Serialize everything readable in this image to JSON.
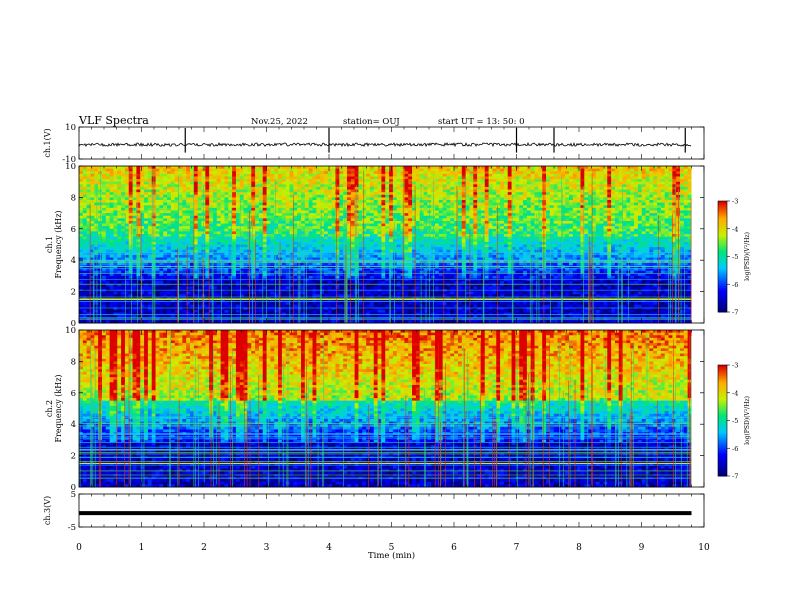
{
  "header": {
    "title": "VLF Spectra",
    "date": "Nov.25, 2022",
    "station": "station= OUJ",
    "start": "start  UT =   13: 50: 0"
  },
  "chart_data": {
    "type": "heatmap",
    "title": "VLF Spectra",
    "x": {
      "label": "Time  (min)",
      "range": [
        0,
        10
      ],
      "ticks": [
        "0",
        "1",
        "2",
        "3",
        "4",
        "5",
        "6",
        "7",
        "8",
        "9",
        "10"
      ]
    },
    "panels": [
      {
        "kind": "waveform",
        "ylabel": "ch.1(V)",
        "ylim": [
          -10,
          10
        ],
        "yticks": [
          "10",
          "-10"
        ],
        "baseline": -1,
        "spike_times": [
          1.7,
          4.0,
          7.0,
          7.6,
          9.7
        ]
      },
      {
        "kind": "spectrogram",
        "channel": "ch.1",
        "ylabel": "Frequency  (kHz)",
        "ylim": [
          0,
          10
        ],
        "yticks": [
          "0",
          "2",
          "4",
          "6",
          "8",
          "10"
        ],
        "data_end": 9.8,
        "colorbar": {
          "label": "log(PSD)(V²/Hz)",
          "range": [
            -7,
            -3
          ],
          "ticks": [
            "-3",
            "-4",
            "-5",
            "-6",
            "-7"
          ]
        }
      },
      {
        "kind": "spectrogram",
        "channel": "ch.2",
        "ylabel": "Frequency  (kHz)",
        "ylim": [
          0,
          10
        ],
        "yticks": [
          "0",
          "2",
          "4",
          "6",
          "8",
          "10"
        ],
        "data_end": 9.8,
        "colorbar": {
          "label": "log(PSD)(V²/Hz)",
          "range": [
            -7,
            -3
          ],
          "ticks": [
            "-3",
            "-4",
            "-5",
            "-6",
            "-7"
          ]
        }
      },
      {
        "kind": "waveform",
        "ylabel": "ch.3(V)",
        "ylim": [
          -5,
          5
        ],
        "yticks": [
          "5",
          "-5"
        ],
        "baseline": -0.8
      }
    ]
  }
}
